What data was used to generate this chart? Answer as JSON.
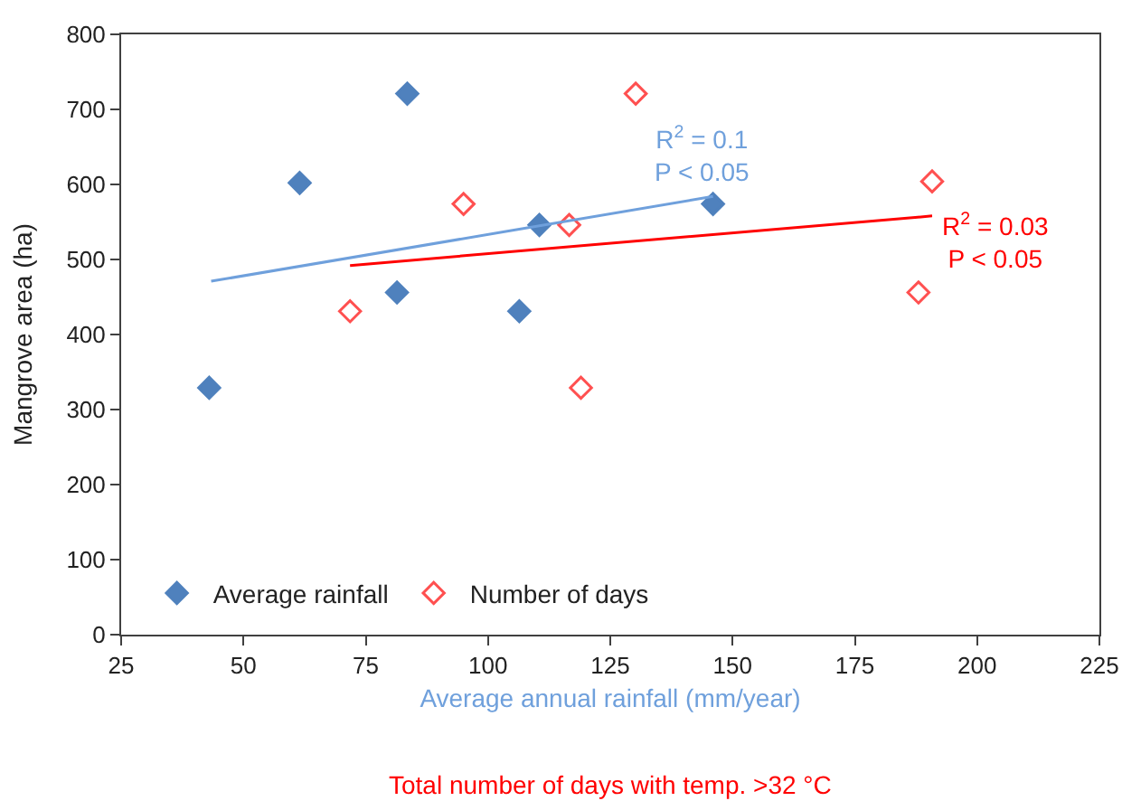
{
  "chart_data": {
    "type": "scatter",
    "ylabel": "Mangrove area (ha)",
    "xlabel": "Average annual rainfall (mm/year)",
    "xlim": [
      25,
      225
    ],
    "xticks": [
      25,
      50,
      75,
      100,
      125,
      150,
      175,
      200,
      225
    ],
    "ylim": [
      0,
      800
    ],
    "yticks": [
      0,
      100,
      200,
      300,
      400,
      500,
      600,
      700,
      800
    ],
    "legend": "bottom left",
    "marker": "diamond",
    "series": [
      {
        "name": "Average rainfall",
        "color": "#4f81bd",
        "x": [
          43,
          61.5,
          83.5,
          81.4,
          110.5,
          106.4,
          146
        ],
        "values": [
          329,
          602,
          721,
          456,
          546,
          431,
          574
        ]
      },
      {
        "name": "Number of days",
        "color": "#ff5050",
        "x": [
          71.8,
          95,
          116.6,
          119,
          130.2,
          190.8,
          188
        ],
        "values": [
          431,
          574,
          546,
          329,
          721,
          604,
          456
        ]
      },
      {
        "type": "line",
        "color": "#6fa0dc",
        "x": [
          43.4,
          146
        ],
        "values": [
          471,
          584
        ],
        "marker": "none"
      },
      {
        "type": "line",
        "color": "#ff0000",
        "x": [
          71.8,
          190.8
        ],
        "values": [
          492,
          558
        ],
        "marker": "none"
      }
    ],
    "annotations": [
      {
        "text": "R$^{2}$ = 0.1\nP < 0.05",
        "x": 146,
        "y": 584
      },
      {
        "text": "R$^{2}$ = 0.03\nP < 0.05",
        "x": 190.8,
        "y": 558
      },
      "Total number of days with temp. >32 °C"
    ]
  }
}
